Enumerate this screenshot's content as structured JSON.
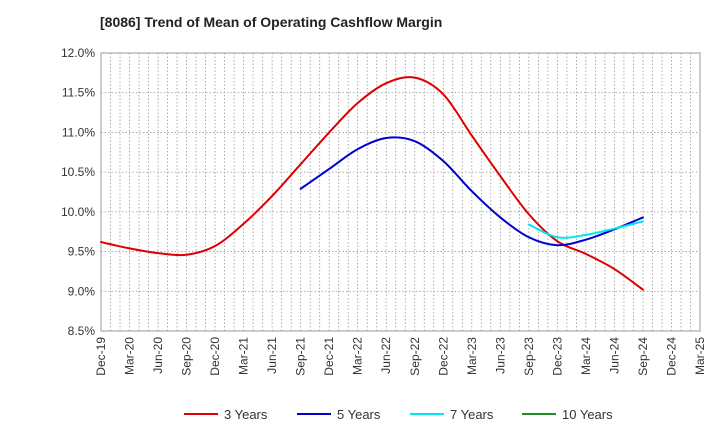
{
  "chart_data": {
    "type": "line",
    "title": "[8086]  Trend of Mean of Operating Cashflow Margin",
    "xlabel": "",
    "ylabel": "",
    "x_tick_labels": [
      "Dec-19",
      "Mar-20",
      "Jun-20",
      "Sep-20",
      "Dec-20",
      "Mar-21",
      "Jun-21",
      "Sep-21",
      "Dec-21",
      "Mar-22",
      "Jun-22",
      "Sep-22",
      "Dec-22",
      "Mar-23",
      "Jun-23",
      "Sep-23",
      "Dec-23",
      "Mar-24",
      "Jun-24",
      "Sep-24",
      "Dec-24",
      "Mar-25"
    ],
    "y_tick_labels": [
      "12.0%",
      "11.5%",
      "11.0%",
      "10.5%",
      "10.0%",
      "9.5%",
      "9.0%",
      "8.5%"
    ],
    "y_ticks": [
      12.0,
      11.5,
      11.0,
      10.5,
      10.0,
      9.5,
      9.0,
      8.5
    ],
    "ylim": [
      8.5,
      12.0
    ],
    "grid": true,
    "legend_position": "bottom",
    "series": [
      {
        "name": "3 Years",
        "color": "#dd0000",
        "x_index": [
          0,
          1,
          2,
          3,
          4,
          5,
          6,
          7,
          8,
          9,
          10,
          11,
          12,
          13,
          14,
          15,
          16,
          17,
          18,
          19
        ],
        "values": [
          9.62,
          9.54,
          9.48,
          9.46,
          9.57,
          9.85,
          10.2,
          10.6,
          11.0,
          11.37,
          11.62,
          11.69,
          11.48,
          10.96,
          10.45,
          9.97,
          9.63,
          9.47,
          9.28,
          9.02
        ]
      },
      {
        "name": "5 Years",
        "color": "#0000cc",
        "x_index": [
          7,
          8,
          9,
          10,
          11,
          12,
          13,
          14,
          15,
          16,
          17,
          18,
          19
        ],
        "values": [
          10.29,
          10.54,
          10.79,
          10.93,
          10.89,
          10.64,
          10.26,
          9.93,
          9.68,
          9.58,
          9.65,
          9.78,
          9.93
        ]
      },
      {
        "name": "7 Years",
        "color": "#00e5ee",
        "x_index": [
          15,
          16,
          17,
          18,
          19
        ],
        "values": [
          9.84,
          9.68,
          9.71,
          9.79,
          9.88
        ]
      },
      {
        "name": "10 Years",
        "color": "#228b22",
        "x_index": [],
        "values": []
      }
    ]
  }
}
